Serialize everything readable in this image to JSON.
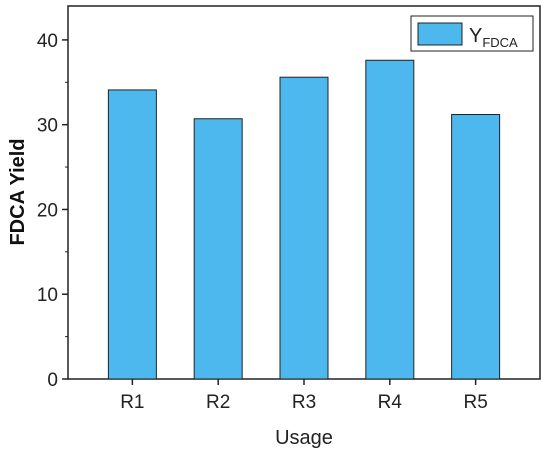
{
  "chart_data": {
    "type": "bar",
    "categories": [
      "R1",
      "R2",
      "R3",
      "R4",
      "R5"
    ],
    "series": [
      {
        "legend_main": "Y",
        "legend_sub": "FDCA",
        "values": [
          34.1,
          30.7,
          35.6,
          37.6,
          31.2
        ],
        "color": "#4db8ee"
      }
    ],
    "xlabel": "Usage",
    "ylabel": "FDCA Yield",
    "ylim": [
      0,
      44
    ],
    "yticks": [
      0,
      10,
      20,
      30,
      40
    ],
    "legend_position": "top-right",
    "grid": false,
    "bar_edge_color": "#222222"
  }
}
